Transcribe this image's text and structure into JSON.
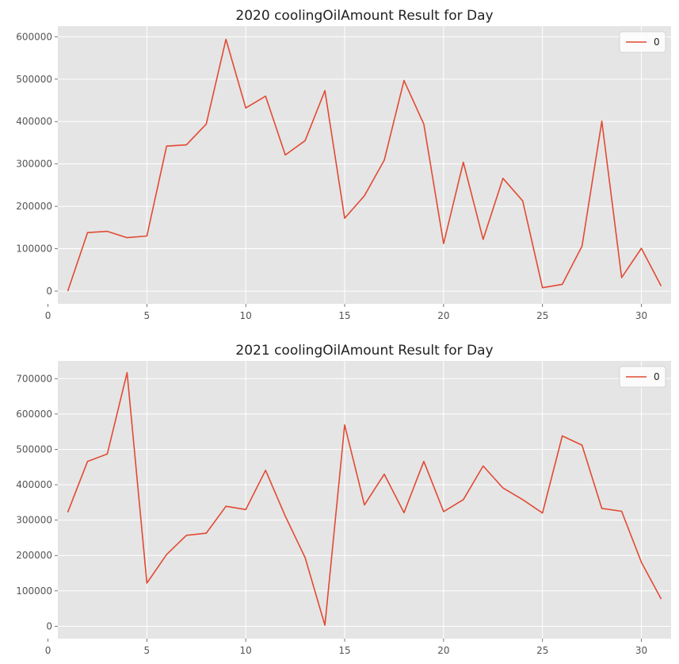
{
  "chart_data": [
    {
      "type": "line",
      "title": "2020 coolingOilAmount Result for Day",
      "xlabel": "",
      "ylabel": "",
      "x": [
        1,
        2,
        3,
        4,
        5,
        6,
        7,
        8,
        9,
        10,
        11,
        12,
        13,
        14,
        15,
        16,
        17,
        18,
        19,
        20,
        21,
        22,
        23,
        24,
        25,
        26,
        27,
        28,
        29,
        30,
        31
      ],
      "series": [
        {
          "name": "0",
          "color": "#e24a33",
          "values": [
            0,
            138000,
            141000,
            126000,
            130000,
            342000,
            345000,
            394000,
            594000,
            432000,
            460000,
            321000,
            355000,
            473000,
            172000,
            225000,
            309000,
            497000,
            394000,
            112000,
            304000,
            122000,
            266000,
            213000,
            8000,
            16000,
            106000,
            401000,
            32000,
            101000,
            12000
          ]
        }
      ],
      "xlim": [
        0.5,
        31.5
      ],
      "ylim": [
        -30000,
        625000
      ],
      "xticks": [
        0,
        5,
        10,
        15,
        20,
        25,
        30
      ],
      "yticks": [
        0,
        100000,
        200000,
        300000,
        400000,
        500000,
        600000
      ],
      "grid": true,
      "legend_position": "top-right"
    },
    {
      "type": "line",
      "title": "2021 coolingOilAmount Result for Day",
      "xlabel": "",
      "ylabel": "",
      "x": [
        1,
        2,
        3,
        4,
        5,
        6,
        7,
        8,
        9,
        10,
        11,
        12,
        13,
        14,
        15,
        16,
        17,
        18,
        19,
        20,
        21,
        22,
        23,
        24,
        25,
        26,
        27,
        28,
        29,
        30,
        31
      ],
      "series": [
        {
          "name": "0",
          "color": "#e24a33",
          "values": [
            322000,
            466000,
            487000,
            717000,
            122000,
            203000,
            257000,
            263000,
            339000,
            330000,
            441000,
            311000,
            194000,
            3000,
            569000,
            343000,
            430000,
            321000,
            466000,
            324000,
            358000,
            453000,
            391000,
            358000,
            320000,
            538000,
            512000,
            333000,
            325000,
            181000,
            77000
          ]
        }
      ],
      "xlim": [
        0.5,
        31.5
      ],
      "ylim": [
        -35000,
        750000
      ],
      "xticks": [
        0,
        5,
        10,
        15,
        20,
        25,
        30
      ],
      "yticks": [
        0,
        100000,
        200000,
        300000,
        400000,
        500000,
        600000,
        700000
      ],
      "grid": true,
      "legend_position": "top-right"
    }
  ]
}
